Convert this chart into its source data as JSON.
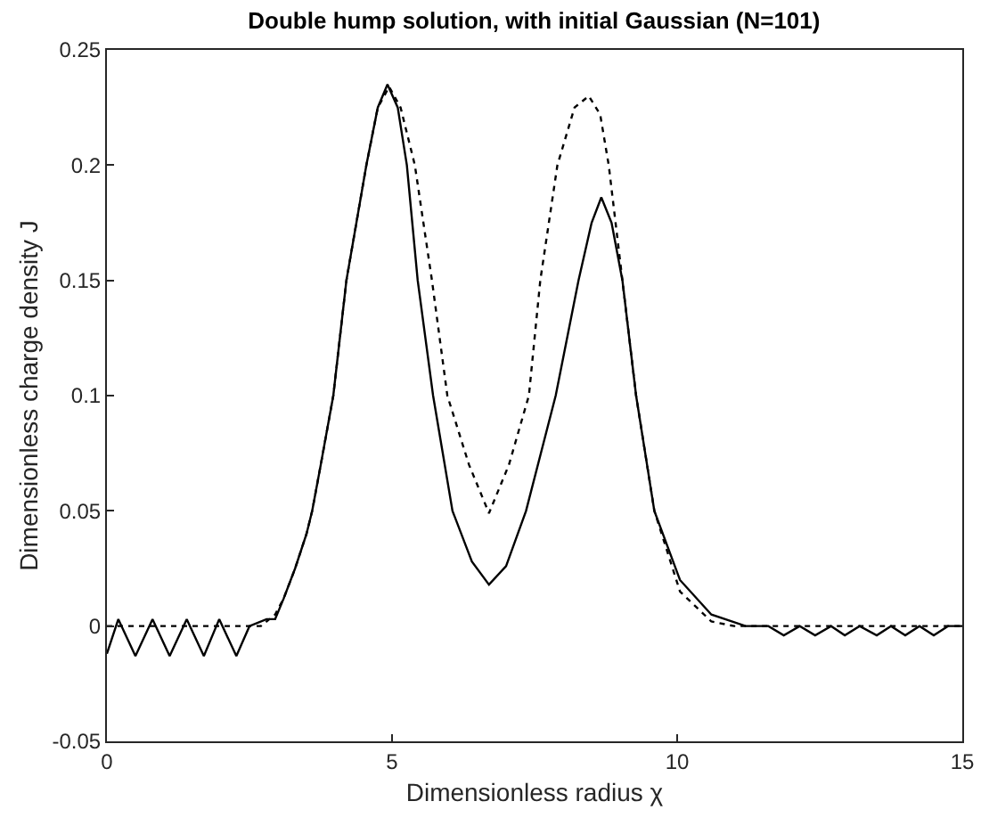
{
  "chart_data": {
    "type": "line",
    "title": "Double hump solution, with initial Gaussian (N=101)",
    "xlabel": "Dimensionless radius χ",
    "ylabel": "Dimensionless charge density J",
    "xlim": [
      0,
      15
    ],
    "ylim": [
      -0.05,
      0.25
    ],
    "xticks": [
      0,
      5,
      10,
      15
    ],
    "yticks": [
      -0.05,
      0,
      0.05,
      0.1,
      0.15,
      0.2,
      0.25
    ],
    "marker": "none",
    "series": [
      {
        "color": "#000000",
        "line_style": "solid",
        "x": [
          0,
          0.2,
          0.5,
          0.8,
          1.1,
          1.4,
          1.7,
          1.97,
          2.27,
          2.5,
          2.8,
          2.95,
          3.1,
          3.3,
          3.5,
          3.6,
          3.75,
          3.97,
          4.2,
          4.55,
          4.75,
          4.92,
          5.1,
          5.26,
          5.45,
          5.72,
          6.06,
          6.4,
          6.7,
          7.0,
          7.35,
          7.87,
          8.27,
          8.5,
          8.67,
          8.85,
          9.04,
          9.28,
          9.6,
          10.05,
          10.6,
          11.2,
          11.6,
          11.87,
          12.15,
          12.42,
          12.7,
          12.94,
          13.2,
          13.5,
          13.75,
          14.0,
          14.25,
          14.5,
          14.75,
          15
        ],
        "values": [
          -0.012,
          0.003,
          -0.013,
          0.003,
          -0.013,
          0.003,
          -0.013,
          0.003,
          -0.013,
          0.0,
          0.003,
          0.003,
          0.012,
          0.025,
          0.04,
          0.05,
          0.07,
          0.1,
          0.15,
          0.2,
          0.225,
          0.235,
          0.225,
          0.2,
          0.15,
          0.1,
          0.05,
          0.028,
          0.018,
          0.026,
          0.05,
          0.1,
          0.15,
          0.175,
          0.186,
          0.175,
          0.15,
          0.1,
          0.05,
          0.02,
          0.005,
          0,
          0,
          -0.004,
          0,
          -0.004,
          0,
          -0.004,
          0,
          -0.004,
          0,
          -0.004,
          0,
          -0.004,
          0,
          0
        ]
      },
      {
        "color": "#000000",
        "line_style": "dotted",
        "x": [
          0,
          2.7,
          2.95,
          3.1,
          3.3,
          3.5,
          3.6,
          3.75,
          3.97,
          4.2,
          4.55,
          4.75,
          4.95,
          5.15,
          5.4,
          5.7,
          5.97,
          6.35,
          6.7,
          7.05,
          7.4,
          7.6,
          7.9,
          8.2,
          8.45,
          8.65,
          8.8,
          9.04,
          9.28,
          9.6,
          10.05,
          10.6,
          11.0,
          15
        ],
        "values": [
          0,
          0,
          0.005,
          0.012,
          0.025,
          0.04,
          0.05,
          0.07,
          0.1,
          0.15,
          0.2,
          0.225,
          0.234,
          0.225,
          0.2,
          0.15,
          0.1,
          0.07,
          0.049,
          0.07,
          0.1,
          0.15,
          0.2,
          0.225,
          0.23,
          0.222,
          0.2,
          0.15,
          0.1,
          0.05,
          0.015,
          0.002,
          0,
          0
        ]
      }
    ]
  }
}
